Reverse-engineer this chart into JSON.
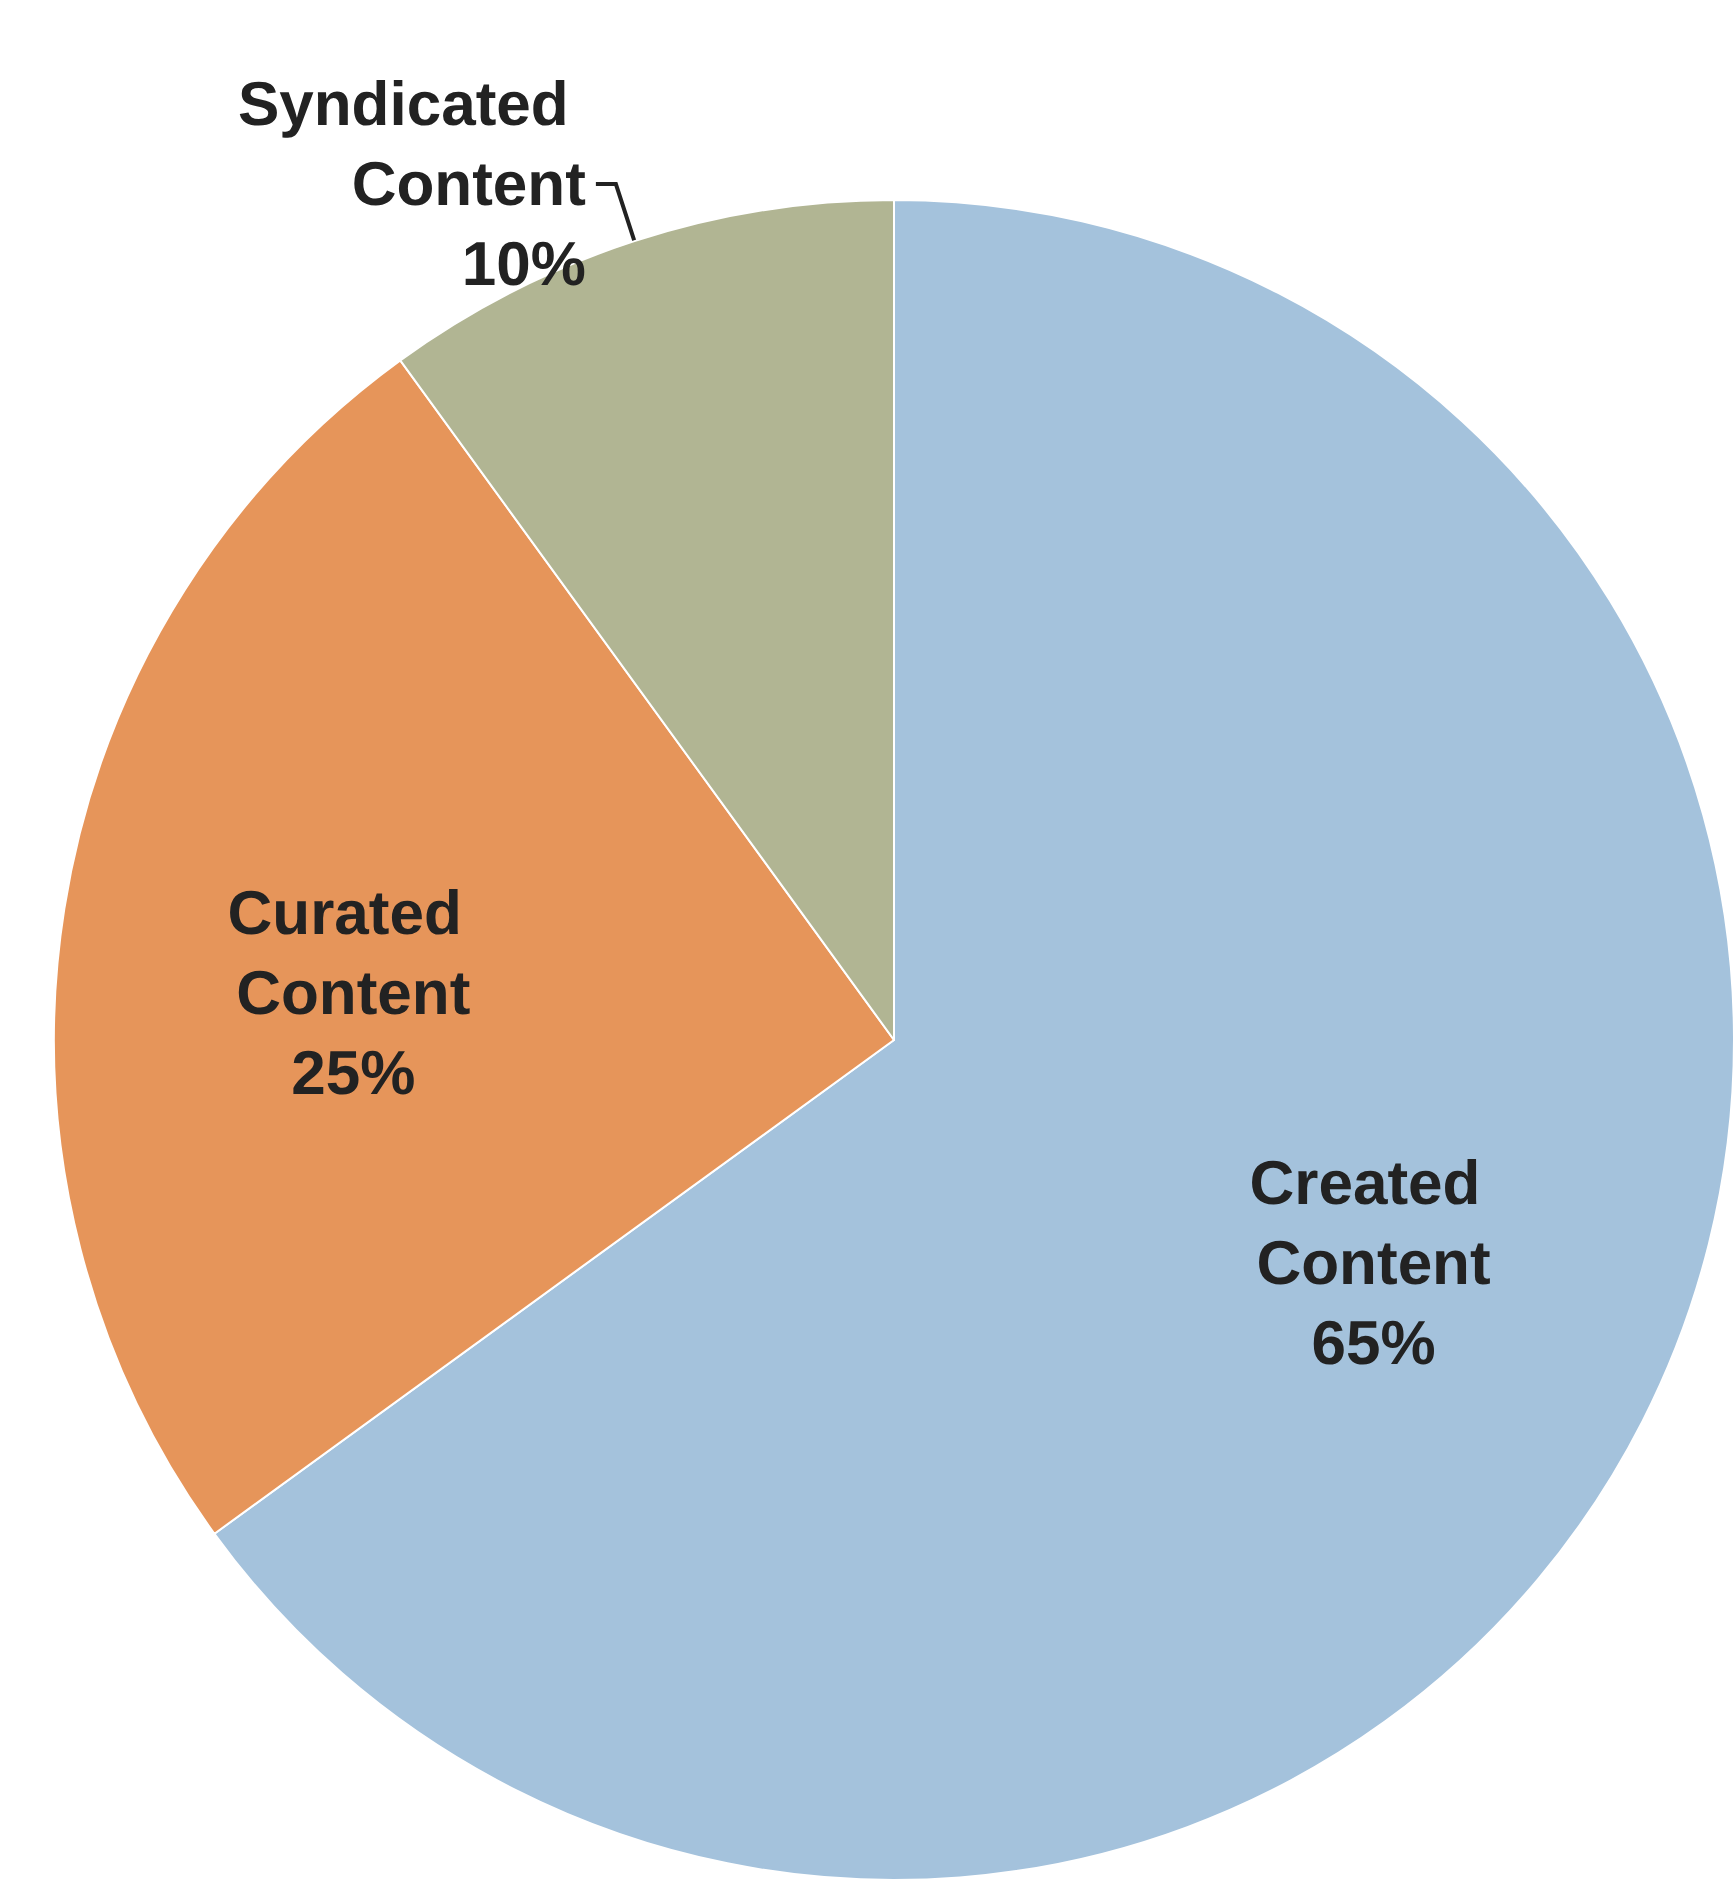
{
  "chart_data": {
    "type": "pie",
    "categories": [
      "Created Content",
      "Curated Content",
      "Syndicated Content"
    ],
    "values": [
      65,
      25,
      10
    ],
    "value_labels": [
      "65%",
      "25%",
      "10%"
    ],
    "colors": [
      "#a4c2dc",
      "#e6955a",
      "#b1b593"
    ],
    "legend": false
  }
}
